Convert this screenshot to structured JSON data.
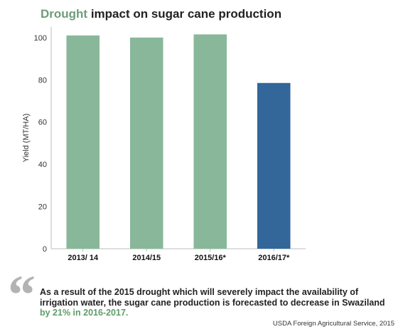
{
  "title": {
    "accent": "Drought",
    "rest": " impact on sugar cane production"
  },
  "chart_data": {
    "type": "bar",
    "title": "Drought impact on sugar cane production",
    "xlabel": "",
    "ylabel": "Yield (MT/HA)",
    "ylim": [
      0,
      105
    ],
    "yticks": [
      0,
      20,
      40,
      60,
      80,
      100
    ],
    "categories": [
      "2013/ 14",
      "2014/15",
      "2015/16*",
      "2016/17*"
    ],
    "values": [
      101,
      100,
      101.5,
      78.5
    ],
    "colors": [
      "#88b899",
      "#88b899",
      "#88b899",
      "#336699"
    ],
    "grid": false,
    "legend": "none"
  },
  "quote": {
    "mark": "“",
    "text": "As a result of the 2015 drought which will severely impact the availability of irrigation water,  the sugar cane production is forecasted to decrease in Swaziland",
    "highlight": " by 21% in 2016-2017."
  },
  "source": "USDA  Foreign Agricultural Service, 2015"
}
